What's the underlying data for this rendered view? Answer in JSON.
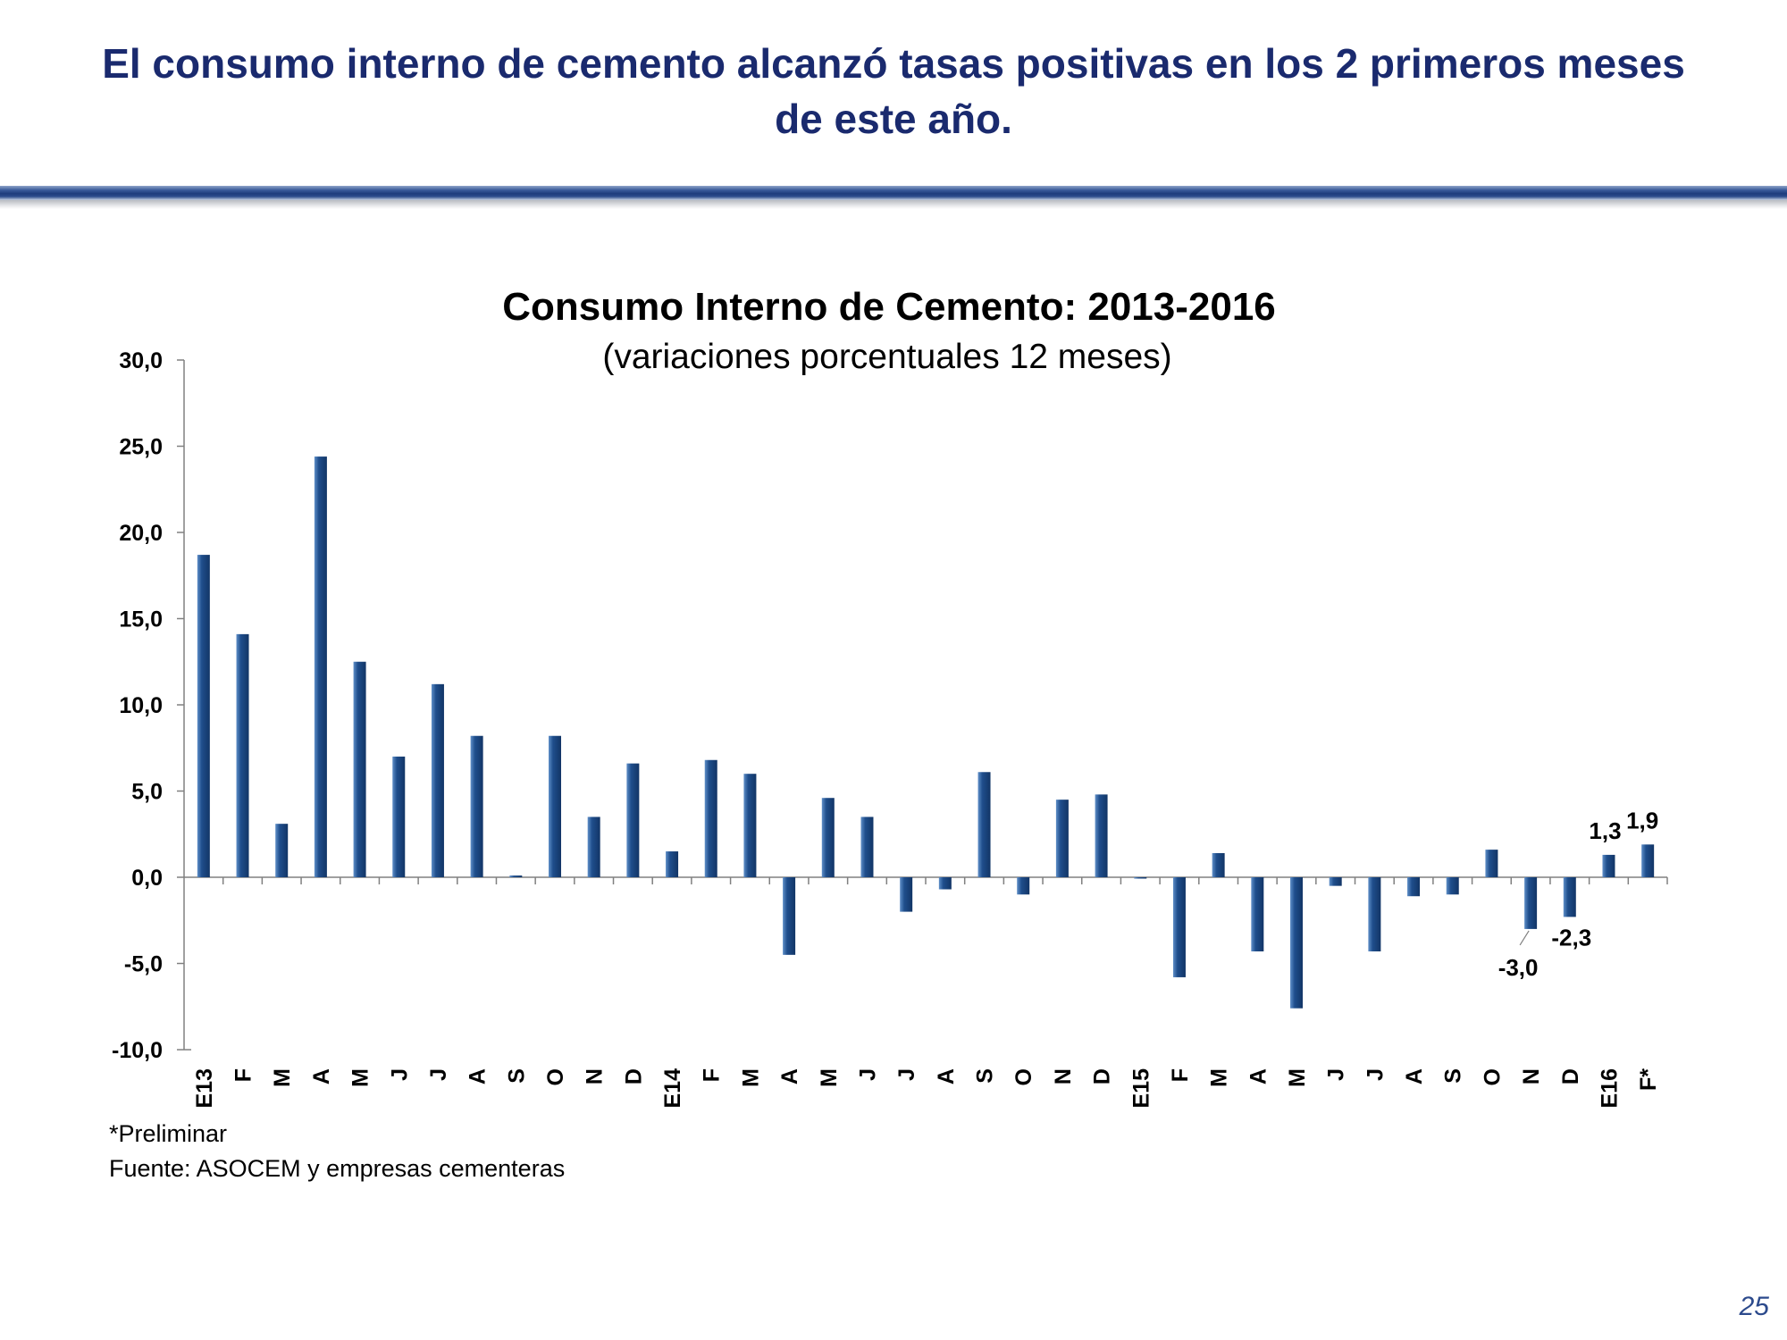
{
  "slide": {
    "title_line1": "El consumo interno de cemento alcanzó tasas positivas en los 2 primeros meses",
    "title_line2": "de este año.",
    "footnote_preliminary": "*Preliminar",
    "footnote_source": "Fuente: ASOCEM y empresas cementeras",
    "page_number": "25"
  },
  "chart_data": {
    "type": "bar",
    "title": "Consumo Interno de Cemento: 2013-2016",
    "subtitle": "(variaciones porcentuales 12 meses)",
    "xlabel": "",
    "ylabel": "",
    "ylim": [
      -10,
      30
    ],
    "yticks": [
      "30,0",
      "25,0",
      "20,0",
      "15,0",
      "10,0",
      "5,0",
      "0,0",
      "-5,0",
      "-10,0"
    ],
    "grid": false,
    "legend": "none",
    "bar_color": "#1f4e8c",
    "categories": [
      "E13",
      "F",
      "M",
      "A",
      "M",
      "J",
      "J",
      "A",
      "S",
      "O",
      "N",
      "D",
      "E14",
      "F",
      "M",
      "A",
      "M",
      "J",
      "J",
      "A",
      "S",
      "O",
      "N",
      "D",
      "E15",
      "F",
      "M",
      "A",
      "M",
      "J",
      "J",
      "A",
      "S",
      "O",
      "N",
      "D",
      "E16",
      "F*"
    ],
    "values": [
      18.7,
      14.1,
      3.1,
      24.4,
      12.5,
      7.0,
      11.2,
      8.2,
      0.1,
      8.2,
      3.5,
      6.6,
      1.5,
      6.8,
      6.0,
      -4.5,
      4.6,
      3.5,
      -2.0,
      -0.7,
      6.1,
      -1.0,
      4.5,
      4.8,
      0.0,
      -5.8,
      1.4,
      -4.3,
      -7.6,
      -0.5,
      -4.3,
      -1.1,
      -1.0,
      1.6,
      -3.0,
      -2.3,
      1.3,
      1.9
    ],
    "data_labels": [
      {
        "index": 34,
        "text": "-3,0"
      },
      {
        "index": 35,
        "text": "-2,3"
      },
      {
        "index": 36,
        "text": "1,3"
      },
      {
        "index": 37,
        "text": "1,9"
      }
    ]
  }
}
